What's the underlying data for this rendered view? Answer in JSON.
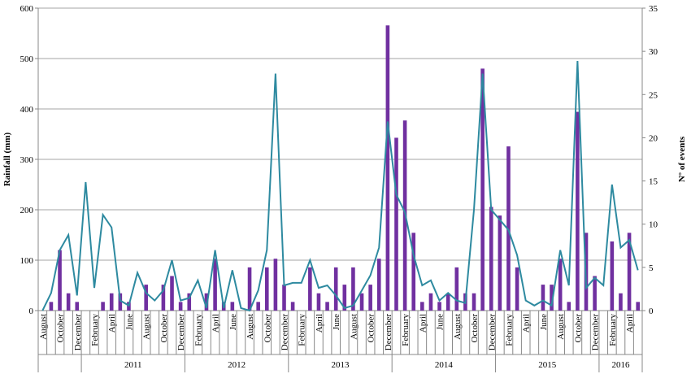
{
  "chart_data": {
    "type": "combo",
    "ylabel": "Rainfall (mm)",
    "y2label": "N° of events",
    "categories": [
      "August",
      null,
      "October",
      null,
      "December",
      null,
      "February",
      null,
      "April",
      null,
      "June",
      null,
      "August",
      null,
      "October",
      null,
      "December",
      null,
      "February",
      null,
      "April",
      null,
      "June",
      null,
      "August",
      null,
      "October",
      null,
      "December",
      null,
      "February",
      null,
      "April",
      null,
      "June",
      null,
      "August",
      null,
      "October",
      null,
      "December",
      null,
      "February",
      null,
      "April",
      null,
      "June",
      null,
      "August",
      null,
      "October",
      null,
      "December",
      null,
      "February",
      null,
      "April",
      null,
      "June",
      null,
      "August",
      null,
      "October",
      null,
      "December",
      null,
      "February",
      null,
      "April",
      null
    ],
    "groups": [
      {
        "label": null,
        "count": 5
      },
      {
        "label": "2011",
        "count": 12
      },
      {
        "label": "2012",
        "count": 12
      },
      {
        "label": "2013",
        "count": 12
      },
      {
        "label": "2014",
        "count": 12
      },
      {
        "label": "2015",
        "count": 12
      },
      {
        "label": "2016",
        "count": 5
      }
    ],
    "series": [
      {
        "type": "bar",
        "axis": "y2",
        "color": "#7030a0",
        "values": [
          0,
          1,
          7,
          2,
          1,
          0,
          0,
          1,
          2,
          2,
          1,
          0,
          3,
          0,
          3,
          4,
          1,
          2,
          0,
          2,
          6,
          1,
          1,
          0,
          5,
          1,
          5,
          6,
          3,
          1,
          0,
          5,
          2,
          1,
          5,
          3,
          5,
          2,
          3,
          6,
          33,
          20,
          22,
          9,
          1,
          2,
          1,
          2,
          5,
          2,
          2,
          28,
          12,
          11,
          19,
          5,
          0,
          0,
          3,
          3,
          6,
          1,
          23,
          9,
          4,
          0,
          8,
          2,
          9,
          1
        ]
      },
      {
        "type": "line",
        "color": "#2e8aa0",
        "values": [
          0,
          35,
          120,
          150,
          30,
          255,
          45,
          190,
          165,
          20,
          10,
          75,
          35,
          20,
          40,
          100,
          20,
          25,
          60,
          5,
          120,
          5,
          80,
          5,
          0,
          40,
          120,
          470,
          50,
          55,
          55,
          100,
          45,
          50,
          30,
          5,
          10,
          40,
          70,
          125,
          375,
          230,
          195,
          110,
          50,
          60,
          20,
          35,
          20,
          15,
          200,
          470,
          200,
          180,
          160,
          110,
          20,
          10,
          20,
          10,
          120,
          50,
          495,
          45,
          65,
          50,
          250,
          125,
          140,
          80
        ]
      }
    ],
    "ylim": [
      0,
      600
    ],
    "yticks": [
      0,
      100,
      200,
      300,
      400,
      500,
      600
    ],
    "y2lim": [
      0,
      35
    ],
    "y2ticks": [
      0,
      5,
      10,
      15,
      20,
      25,
      30,
      35
    ],
    "grid": true
  }
}
